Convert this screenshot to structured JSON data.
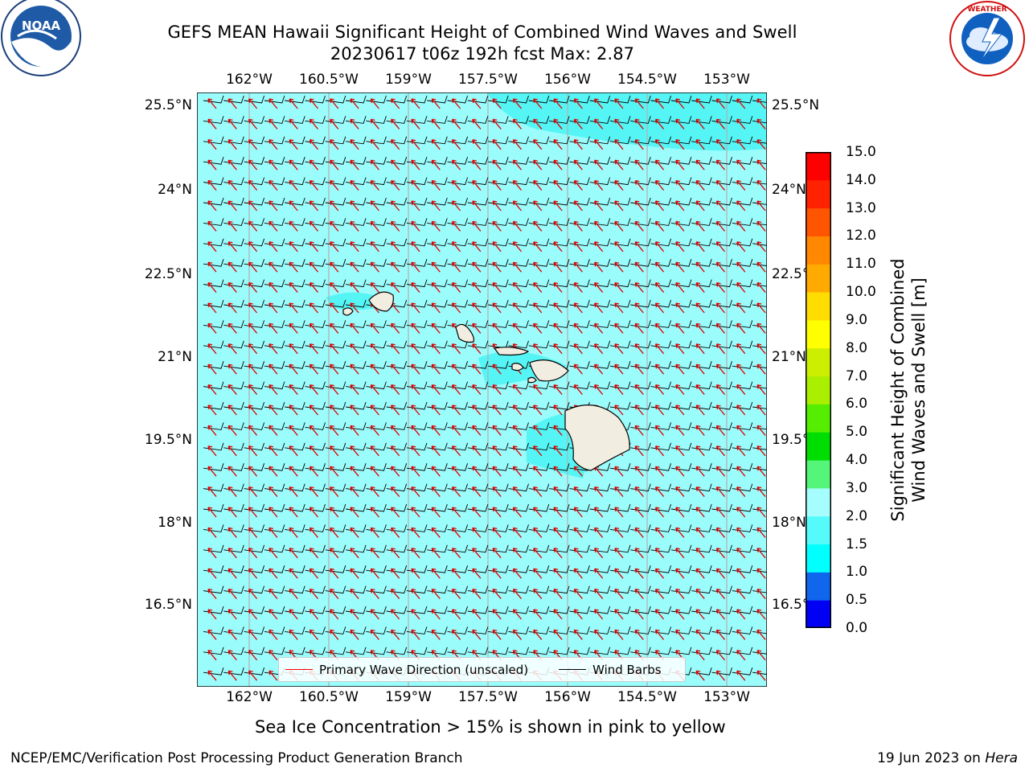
{
  "header": {
    "title_line1": "GEFS MEAN Hawaii Significant Height of Combined Wind Waves and Swell",
    "title_line2": "20230617 t06z 192h fcst   Max: 2.87"
  },
  "logos": {
    "left": {
      "icon": "noaa-logo",
      "text": "NOAA"
    },
    "right": {
      "icon": "nws-logo",
      "text": "NATIONAL WEATHER SERVICE"
    }
  },
  "map": {
    "lon_ticks": [
      "162°W",
      "160.5°W",
      "159°W",
      "157.5°W",
      "156°W",
      "154.5°W",
      "153°W"
    ],
    "lat_ticks": [
      "25.5°N",
      "24°N",
      "22.5°N",
      "21°N",
      "19.5°N",
      "18°N",
      "16.5°N"
    ],
    "colors": {
      "ocean_fill": "#9bfcfc",
      "higher_wave_fill": "#55f5f5",
      "land": "#f1ede0",
      "grid": "#b0b0b0",
      "arrow": "#e00000",
      "barb": "#000000"
    }
  },
  "legend": {
    "wave_label": "Primary Wave Direction (unscaled)",
    "barb_label": "Wind Barbs"
  },
  "colorbar": {
    "title_line1": "Significant Height of Combined",
    "title_line2": "Wind Waves and Swell [m]",
    "levels": [
      "0.0",
      "0.5",
      "1.0",
      "1.5",
      "2.0",
      "3.0",
      "4.0",
      "5.0",
      "6.0",
      "7.0",
      "8.0",
      "9.0",
      "10.0",
      "11.0",
      "12.0",
      "13.0",
      "14.0",
      "15.0"
    ],
    "colors": [
      "#0000f5",
      "#1166ee",
      "#00ffff",
      "#55fbfb",
      "#a5fdfd",
      "#55f57a",
      "#00dd00",
      "#55ee00",
      "#aaee00",
      "#ccee00",
      "#ffff00",
      "#ffdd00",
      "#ffaa00",
      "#ff8800",
      "#ff5500",
      "#ff2200",
      "#ff0000"
    ]
  },
  "footer": {
    "note": "Sea Ice Concentration > 15% is shown in pink to yellow",
    "branch": "NCEP/EMC/Verification Post Processing Product Generation Branch",
    "date": "19 Jun 2023 on ",
    "host": "Hera"
  }
}
